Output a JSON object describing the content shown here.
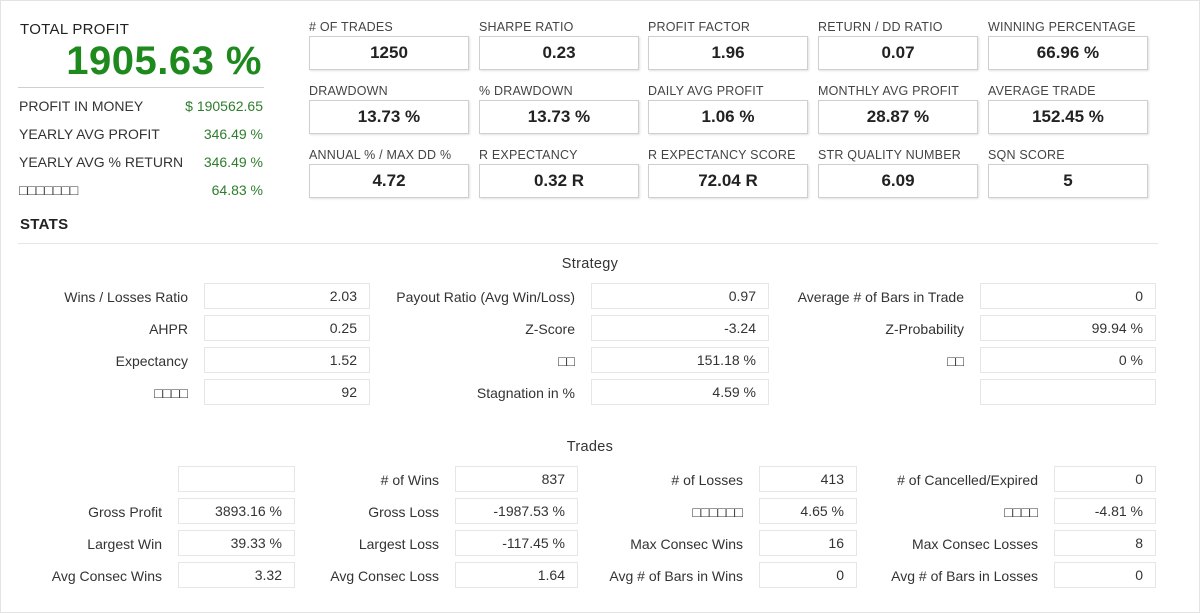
{
  "total_profit": {
    "title": "TOTAL PROFIT",
    "value": "1905.63 %",
    "rows": [
      {
        "label": "PROFIT IN MONEY",
        "value": "$ 190562.65"
      },
      {
        "label": "YEARLY AVG PROFIT",
        "value": "346.49 %"
      },
      {
        "label": "YEARLY AVG % RETURN",
        "value": "346.49 %"
      },
      {
        "label": "□□□□□□□",
        "value": "64.83 %"
      }
    ]
  },
  "metrics": [
    {
      "label": "# OF TRADES",
      "value": "1250"
    },
    {
      "label": "SHARPE RATIO",
      "value": "0.23"
    },
    {
      "label": "PROFIT FACTOR",
      "value": "1.96"
    },
    {
      "label": "RETURN / DD RATIO",
      "value": "0.07"
    },
    {
      "label": "WINNING PERCENTAGE",
      "value": "66.96 %"
    },
    {
      "label": "DRAWDOWN",
      "value": "13.73 %"
    },
    {
      "label": "% DRAWDOWN",
      "value": "13.73 %"
    },
    {
      "label": "DAILY AVG PROFIT",
      "value": "1.06 %"
    },
    {
      "label": "MONTHLY AVG PROFIT",
      "value": "28.87 %"
    },
    {
      "label": "AVERAGE TRADE",
      "value": "152.45 %"
    },
    {
      "label": "ANNUAL % / MAX DD %",
      "value": "4.72"
    },
    {
      "label": "R EXPECTANCY",
      "value": "0.32 R"
    },
    {
      "label": "R EXPECTANCY SCORE",
      "value": "72.04 R"
    },
    {
      "label": "STR QUALITY NUMBER",
      "value": "6.09"
    },
    {
      "label": "SQN SCORE",
      "value": "5"
    }
  ],
  "stats": {
    "title": "STATS",
    "strategy": {
      "title": "Strategy",
      "rows": [
        [
          {
            "label": "Wins / Losses Ratio",
            "value": "2.03"
          },
          {
            "label": "Payout Ratio (Avg Win/Loss)",
            "value": "0.97"
          },
          {
            "label": "Average # of Bars in Trade",
            "value": "0"
          }
        ],
        [
          {
            "label": "AHPR",
            "value": "0.25"
          },
          {
            "label": "Z-Score",
            "value": "-3.24"
          },
          {
            "label": "Z-Probability",
            "value": "99.94 %"
          }
        ],
        [
          {
            "label": "Expectancy",
            "value": "1.52"
          },
          {
            "label": "□□",
            "value": "151.18 %"
          },
          {
            "label": "□□",
            "value": "0 %"
          }
        ],
        [
          {
            "label": "□□□□",
            "value": "92"
          },
          {
            "label": "Stagnation in %",
            "value": "4.59 %"
          },
          {
            "label": "",
            "value": ""
          }
        ]
      ]
    },
    "trades": {
      "title": "Trades",
      "rows": [
        [
          {
            "label": "",
            "value": ""
          },
          {
            "label": "# of Wins",
            "value": "837"
          },
          {
            "label": "# of Losses",
            "value": "413"
          },
          {
            "label": "# of Cancelled/Expired",
            "value": "0"
          }
        ],
        [
          {
            "label": "Gross Profit",
            "value": "3893.16 %"
          },
          {
            "label": "Gross Loss",
            "value": "-1987.53 %"
          },
          {
            "label": "□□□□□□",
            "value": "4.65 %"
          },
          {
            "label": "□□□□",
            "value": "-4.81 %"
          }
        ],
        [
          {
            "label": "Largest Win",
            "value": "39.33 %"
          },
          {
            "label": "Largest Loss",
            "value": "-117.45 %"
          },
          {
            "label": "Max Consec Wins",
            "value": "16"
          },
          {
            "label": "Max Consec Losses",
            "value": "8"
          }
        ],
        [
          {
            "label": "Avg Consec Wins",
            "value": "3.32"
          },
          {
            "label": "Avg Consec Loss",
            "value": "1.64"
          },
          {
            "label": "Avg # of Bars in Wins",
            "value": "0"
          },
          {
            "label": "Avg # of Bars in Losses",
            "value": "0"
          }
        ]
      ]
    }
  },
  "colors": {
    "profit_green": "#1e8a1e",
    "value_green": "#2e7d2e"
  }
}
